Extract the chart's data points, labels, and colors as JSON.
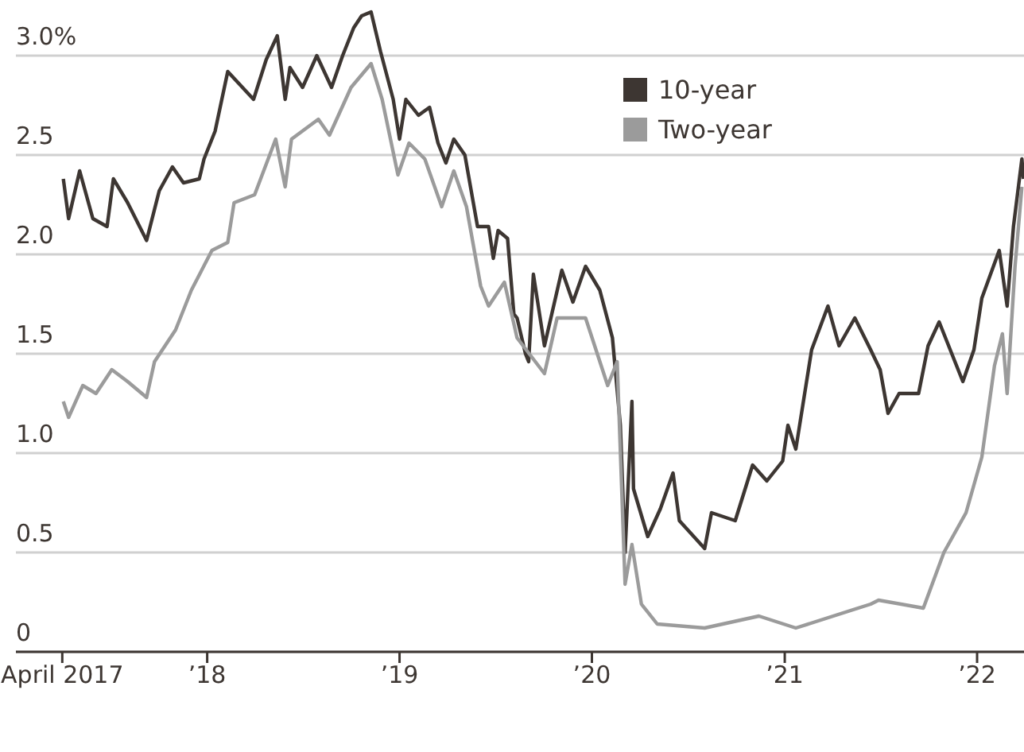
{
  "chart_data": {
    "type": "line",
    "legend": "top right",
    "grid": "y",
    "marker": "none",
    "line_style": "solid",
    "xlim": [
      "2017-01-03",
      "2022-03-31"
    ],
    "ylim": [
      0,
      3.28
    ],
    "xticks": [
      {
        "value": "2017-04-01",
        "label": "April 2017"
      },
      {
        "value": "2018-01-01",
        "label": "’18"
      },
      {
        "value": "2019-01-01",
        "label": "’19"
      },
      {
        "value": "2020-01-01",
        "label": "’20"
      },
      {
        "value": "2021-01-01",
        "label": "’21"
      },
      {
        "value": "2022-01-01",
        "label": "’22"
      }
    ],
    "yticks": [
      0,
      0.5,
      {
        "value": 1,
        "label": "1.0"
      },
      1.5,
      {
        "value": 2,
        "label": "2.0"
      },
      2.5,
      {
        "value": 3,
        "label": "3.0%"
      }
    ],
    "series": [
      {
        "name": "10-year",
        "color": "#3d3632",
        "x": [
          "2017-04-03",
          "2017-04-13",
          "2017-05-04",
          "2017-05-29",
          "2017-06-25",
          "2017-07-07",
          "2017-08-03",
          "2017-09-08",
          "2017-10-02",
          "2017-10-27",
          "2017-11-17",
          "2017-12-17",
          "2017-12-26",
          "2018-01-16",
          "2018-02-09",
          "2018-03-02",
          "2018-03-30",
          "2018-04-23",
          "2018-05-14",
          "2018-05-29",
          "2018-06-07",
          "2018-07-01",
          "2018-07-28",
          "2018-08-25",
          "2018-09-15",
          "2018-10-06",
          "2018-10-21",
          "2018-11-08",
          "2018-11-26",
          "2018-12-20",
          "2019-01-01",
          "2019-01-13",
          "2019-02-06",
          "2019-02-27",
          "2019-03-15",
          "2019-03-30",
          "2019-04-14",
          "2019-05-05",
          "2019-05-29",
          "2019-06-19",
          "2019-06-28",
          "2019-07-07",
          "2019-07-25",
          "2019-08-06",
          "2019-08-12",
          "2019-08-28",
          "2019-09-03",
          "2019-09-12",
          "2019-10-03",
          "2019-11-05",
          "2019-11-26",
          "2019-12-20",
          "2020-01-16",
          "2020-02-09",
          "2020-02-24",
          "2020-03-04",
          "2020-03-17",
          "2020-03-20",
          "2020-04-16",
          "2020-05-10",
          "2020-06-03",
          "2020-06-15",
          "2020-08-02",
          "2020-08-15",
          "2020-09-29",
          "2020-11-01",
          "2020-11-28",
          "2020-12-28",
          "2021-01-07",
          "2021-01-22",
          "2021-02-21",
          "2021-03-24",
          "2021-04-14",
          "2021-05-14",
          "2021-06-13",
          "2021-07-01",
          "2021-07-16",
          "2021-08-06",
          "2021-09-12",
          "2021-09-30",
          "2021-10-21",
          "2021-11-20",
          "2021-12-05",
          "2021-12-26",
          "2022-01-10",
          "2022-02-12",
          "2022-02-27",
          "2022-03-11",
          "2022-03-27",
          "2022-03-30"
        ],
        "values": [
          2.38,
          2.18,
          2.42,
          2.18,
          2.14,
          2.38,
          2.26,
          2.07,
          2.32,
          2.44,
          2.36,
          2.38,
          2.48,
          2.62,
          2.92,
          2.86,
          2.78,
          2.98,
          3.1,
          2.78,
          2.94,
          2.84,
          3.0,
          2.84,
          3.0,
          3.14,
          3.2,
          3.22,
          3.02,
          2.78,
          2.58,
          2.78,
          2.7,
          2.74,
          2.56,
          2.46,
          2.58,
          2.5,
          2.14,
          2.14,
          1.98,
          2.12,
          2.08,
          1.7,
          1.68,
          1.5,
          1.46,
          1.9,
          1.54,
          1.92,
          1.76,
          1.94,
          1.82,
          1.58,
          1.14,
          0.5,
          1.26,
          0.82,
          0.58,
          0.72,
          0.9,
          0.66,
          0.52,
          0.7,
          0.66,
          0.94,
          0.86,
          0.96,
          1.14,
          1.02,
          1.52,
          1.74,
          1.54,
          1.68,
          1.52,
          1.42,
          1.2,
          1.3,
          1.3,
          1.54,
          1.66,
          1.46,
          1.36,
          1.52,
          1.78,
          2.02,
          1.74,
          2.14,
          2.48,
          2.38
        ]
      },
      {
        "name": "Two-year",
        "color": "#9b9b9b",
        "x": [
          "2017-04-03",
          "2017-04-13",
          "2017-05-10",
          "2017-06-04",
          "2017-07-04",
          "2017-08-03",
          "2017-09-08",
          "2017-09-23",
          "2017-11-02",
          "2017-12-02",
          "2018-01-10",
          "2018-02-09",
          "2018-02-21",
          "2018-04-01",
          "2018-05-11",
          "2018-05-29",
          "2018-06-10",
          "2018-07-31",
          "2018-08-21",
          "2018-10-01",
          "2018-11-08",
          "2018-11-29",
          "2018-12-29",
          "2019-01-19",
          "2019-02-18",
          "2019-03-22",
          "2019-04-14",
          "2019-05-08",
          "2019-06-04",
          "2019-06-19",
          "2019-07-19",
          "2019-08-12",
          "2019-10-03",
          "2019-10-27",
          "2019-12-20",
          "2020-01-31",
          "2020-02-18",
          "2020-03-04",
          "2020-03-17",
          "2020-04-04",
          "2020-05-04",
          "2020-08-02",
          "2020-11-13",
          "2021-01-22",
          "2021-06-13",
          "2021-06-28",
          "2021-09-21",
          "2021-10-30",
          "2021-12-11",
          "2022-01-10",
          "2022-02-03",
          "2022-02-18",
          "2022-02-27",
          "2022-03-14",
          "2022-03-27"
        ],
        "values": [
          1.26,
          1.18,
          1.34,
          1.3,
          1.42,
          1.36,
          1.28,
          1.46,
          1.62,
          1.82,
          2.02,
          2.06,
          2.26,
          2.3,
          2.58,
          2.34,
          2.58,
          2.68,
          2.6,
          2.84,
          2.96,
          2.78,
          2.4,
          2.56,
          2.48,
          2.24,
          2.42,
          2.24,
          1.84,
          1.74,
          1.86,
          1.58,
          1.4,
          1.68,
          1.68,
          1.34,
          1.46,
          0.34,
          0.54,
          0.24,
          0.14,
          0.12,
          0.18,
          0.12,
          0.24,
          0.26,
          0.22,
          0.5,
          0.7,
          0.98,
          1.44,
          1.6,
          1.3,
          1.94,
          2.34
        ]
      }
    ]
  }
}
